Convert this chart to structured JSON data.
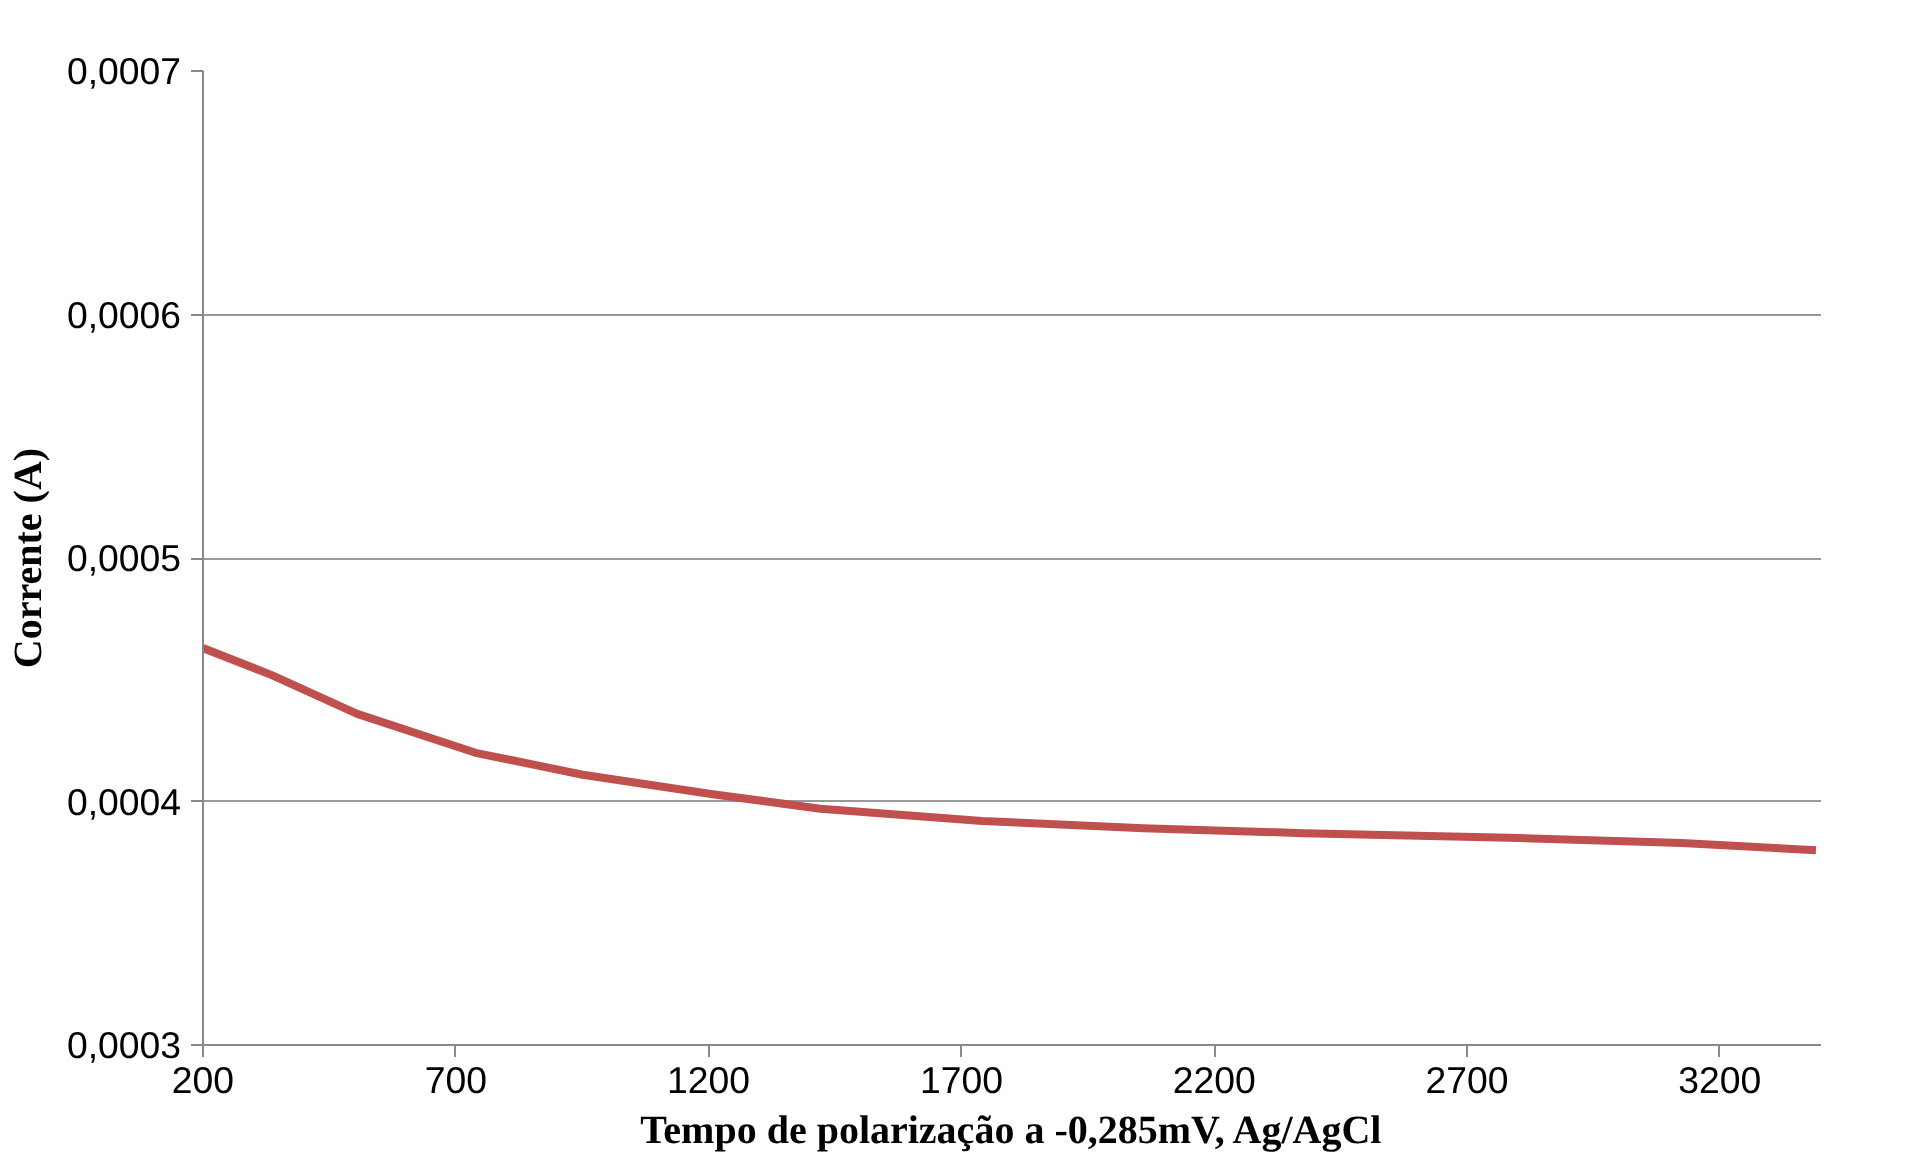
{
  "chart_data": {
    "type": "line",
    "xlabel": "Tempo de polarização a -0,285mV, Ag/AgCl",
    "ylabel": "Corrente (A)",
    "x": [
      200,
      335,
      505,
      739,
      951,
      1208,
      1421,
      1741,
      2060,
      2378,
      2805,
      3125,
      3390
    ],
    "series": [
      {
        "color": "#c0504d",
        "values": [
          0.000463,
          0.000452,
          0.000436,
          0.00042,
          0.000411,
          0.000403,
          0.000397,
          0.000392,
          0.000389,
          0.000387,
          0.000385,
          0.000383,
          0.00038
        ]
      }
    ],
    "xlim": [
      200,
      3400
    ],
    "xticks": [
      200,
      700,
      1200,
      1700,
      2200,
      2700,
      3200
    ],
    "ylim": [
      0.0003,
      0.0007
    ],
    "yticks": [
      {
        "value": 0.0003,
        "label": "0,0003"
      },
      {
        "value": 0.0004,
        "label": "0,0004"
      },
      {
        "value": 0.0005,
        "label": "0,0005"
      },
      {
        "value": 0.0006,
        "label": "0,0006"
      },
      {
        "value": 0.0007,
        "label": "0,0007"
      }
    ],
    "grid": "y",
    "marker": "none",
    "line_style": "solid"
  }
}
